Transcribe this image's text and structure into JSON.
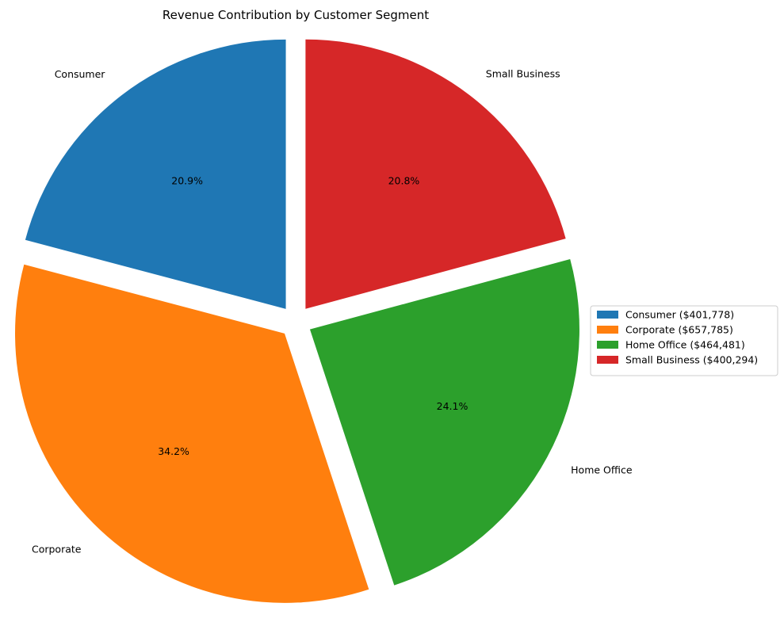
{
  "chart_data": {
    "type": "pie",
    "title": "Revenue Contribution by Customer Segment",
    "categories": [
      "Consumer",
      "Corporate",
      "Home Office",
      "Small Business"
    ],
    "values": [
      401778,
      657785,
      464481,
      400294
    ],
    "percent_labels": [
      "20.9%",
      "34.2%",
      "24.1%",
      "20.8%"
    ],
    "legend_labels": [
      "Consumer ($401,778)",
      "Corporate ($657,785)",
      "Home Office ($464,481)",
      "Small Business ($400,294)"
    ],
    "colors": [
      "#1f77b4",
      "#ff7f0e",
      "#2ca02c",
      "#d62728"
    ],
    "start_angle_deg": 90,
    "direction": "counterclockwise",
    "exploded": true,
    "legend_position": "center-right"
  }
}
